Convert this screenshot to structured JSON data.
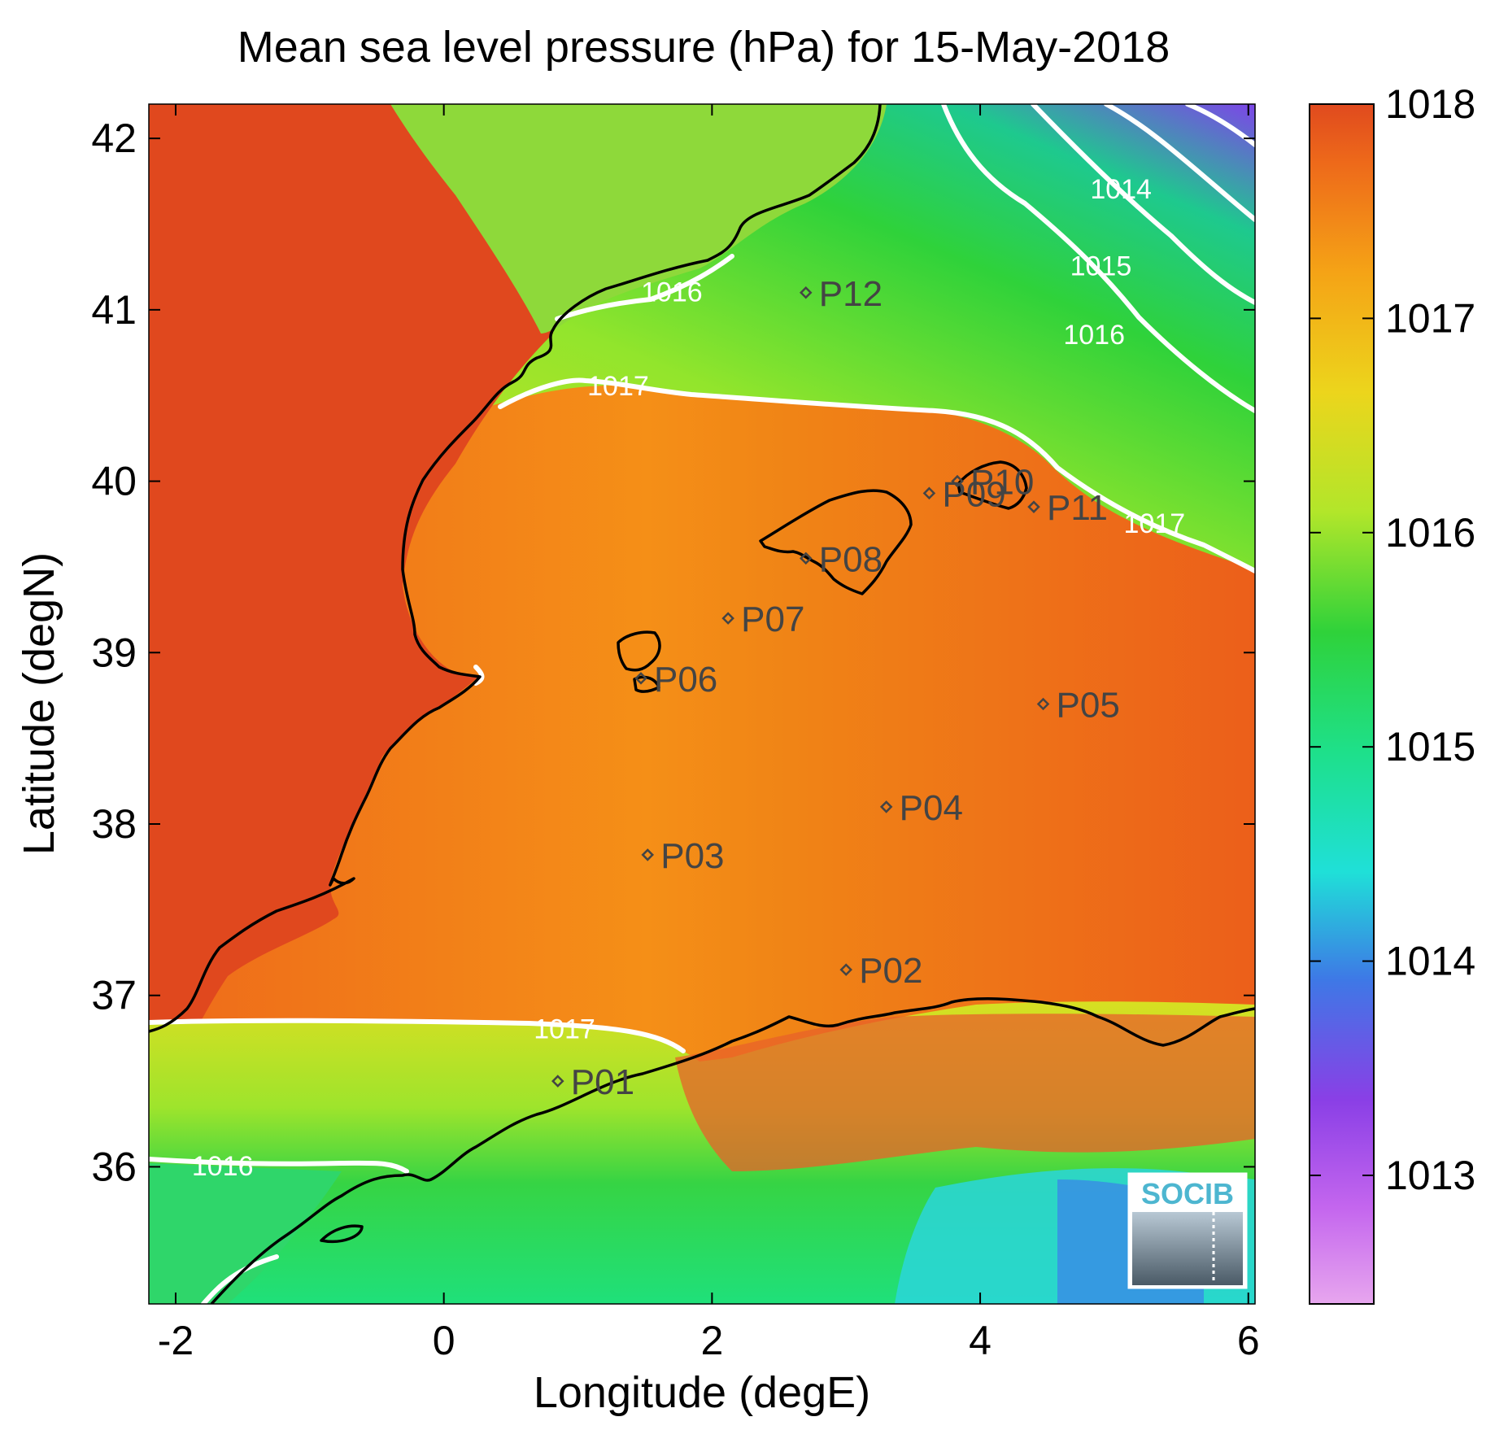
{
  "title": "Mean sea level pressure (hPa) for 15-May-2018",
  "xlabel": "Longitude (degE)",
  "ylabel": "Latitude (degN)",
  "x_ticks": [
    "-2",
    "0",
    "2",
    "4",
    "6"
  ],
  "y_ticks": [
    "36",
    "37",
    "38",
    "39",
    "40",
    "41",
    "42"
  ],
  "colorbar": {
    "ticks": [
      "1013",
      "1014",
      "1015",
      "1016",
      "1017",
      "1018"
    ],
    "range": [
      1012.4,
      1018
    ]
  },
  "logo_text": "SOCIB",
  "colors": {
    "high": "#e04a1e",
    "mid_high": "#f08a15",
    "mid": "#ecd51c",
    "green": "#2fd23a",
    "cyan": "#1fe0d8",
    "blue": "#3e78e6",
    "purple": "#8a3fe6",
    "coast": "#000000",
    "contour": "#ffffff",
    "station": "#444444"
  },
  "chart_data": {
    "type": "heatmap",
    "variable": "Mean sea level pressure",
    "units": "hPa",
    "date": "15-May-2018",
    "xlim": [
      -2.2,
      6.05
    ],
    "ylim": [
      35.2,
      42.2
    ],
    "contour_levels": [
      {
        "label": "1014",
        "x": 5.05,
        "y": 41.65
      },
      {
        "label": "1015",
        "x": 4.9,
        "y": 41.2
      },
      {
        "label": "1016",
        "x": 1.7,
        "y": 41.05
      },
      {
        "label": "1016",
        "x": 4.85,
        "y": 40.8
      },
      {
        "label": "1016",
        "x": -1.65,
        "y": 35.95
      },
      {
        "label": "1017",
        "x": 1.3,
        "y": 40.5
      },
      {
        "label": "1017",
        "x": 5.3,
        "y": 39.7
      },
      {
        "label": "1017",
        "x": 0.9,
        "y": 36.75
      }
    ],
    "stations": [
      {
        "name": "P01",
        "lon": 0.85,
        "lat": 36.5
      },
      {
        "name": "P02",
        "lon": 3.0,
        "lat": 37.15
      },
      {
        "name": "P03",
        "lon": 1.52,
        "lat": 37.82
      },
      {
        "name": "P04",
        "lon": 3.3,
        "lat": 38.1
      },
      {
        "name": "P05",
        "lon": 4.47,
        "lat": 38.7
      },
      {
        "name": "P06",
        "lon": 1.47,
        "lat": 38.85
      },
      {
        "name": "P07",
        "lon": 2.12,
        "lat": 39.2
      },
      {
        "name": "P08",
        "lon": 2.7,
        "lat": 39.55
      },
      {
        "name": "P09",
        "lon": 3.62,
        "lat": 39.93
      },
      {
        "name": "P10",
        "lon": 3.83,
        "lat": 40.0
      },
      {
        "name": "P11",
        "lon": 4.4,
        "lat": 39.85
      },
      {
        "name": "P12",
        "lon": 2.7,
        "lat": 41.1
      }
    ]
  }
}
